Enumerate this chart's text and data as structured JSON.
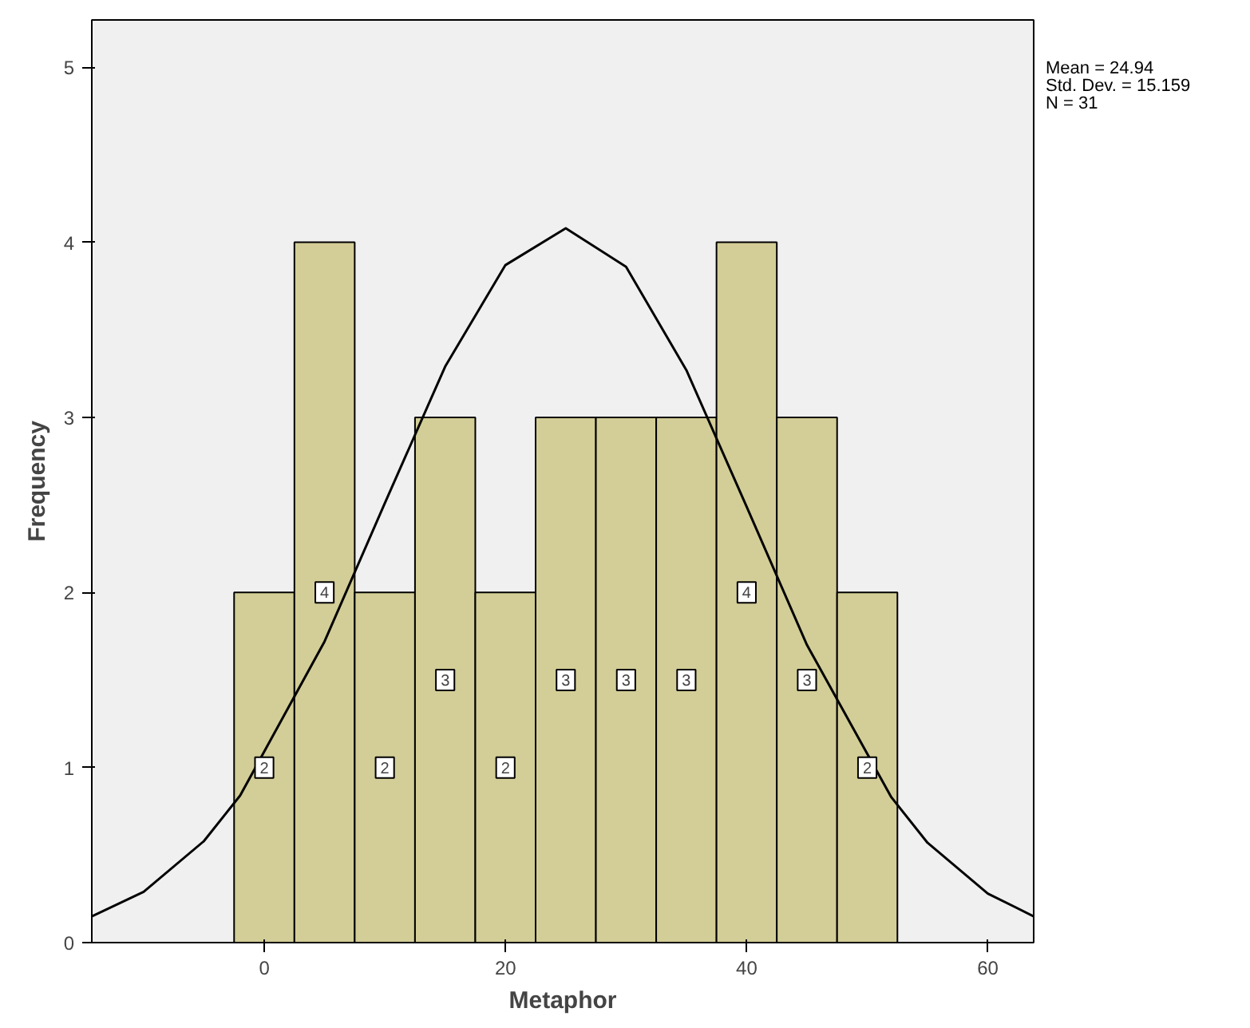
{
  "chart_data": {
    "type": "histogram",
    "xlabel": "Metaphor",
    "ylabel": "Frequency",
    "bins": [
      -2.5,
      2.5,
      7.5,
      12.5,
      17.5,
      22.5,
      27.5,
      32.5,
      37.5,
      42.5,
      47.5,
      52.5
    ],
    "values": [
      2,
      4,
      2,
      3,
      2,
      3,
      3,
      3,
      4,
      3,
      2
    ],
    "color": "#d3ce97",
    "value_labels": [
      "2",
      "4",
      "2",
      "3",
      "2",
      "3",
      "3",
      "3",
      "4",
      "3",
      "2"
    ],
    "xlim": [
      -14.3,
      63.8
    ],
    "xticks": [
      0,
      20,
      40,
      60
    ],
    "ylim": [
      0,
      5.27
    ],
    "yticks": [
      0,
      1,
      2,
      3,
      4,
      5
    ],
    "grid": false,
    "series": [
      {
        "type": "line",
        "color": "#000000",
        "x": [
          -14.3,
          -10,
          -5,
          -2,
          5,
          10,
          15,
          20,
          25,
          30,
          35,
          40,
          45,
          52,
          55,
          60,
          63.8
        ],
        "values": [
          0.15,
          0.29,
          0.58,
          0.84,
          1.72,
          2.51,
          3.29,
          3.87,
          4.08,
          3.86,
          3.27,
          2.49,
          1.7,
          0.83,
          0.57,
          0.28,
          0.15
        ]
      }
    ],
    "annotations": [
      "Mean = 24.94",
      "Std. Dev. = 15.159",
      "N = 31"
    ]
  }
}
